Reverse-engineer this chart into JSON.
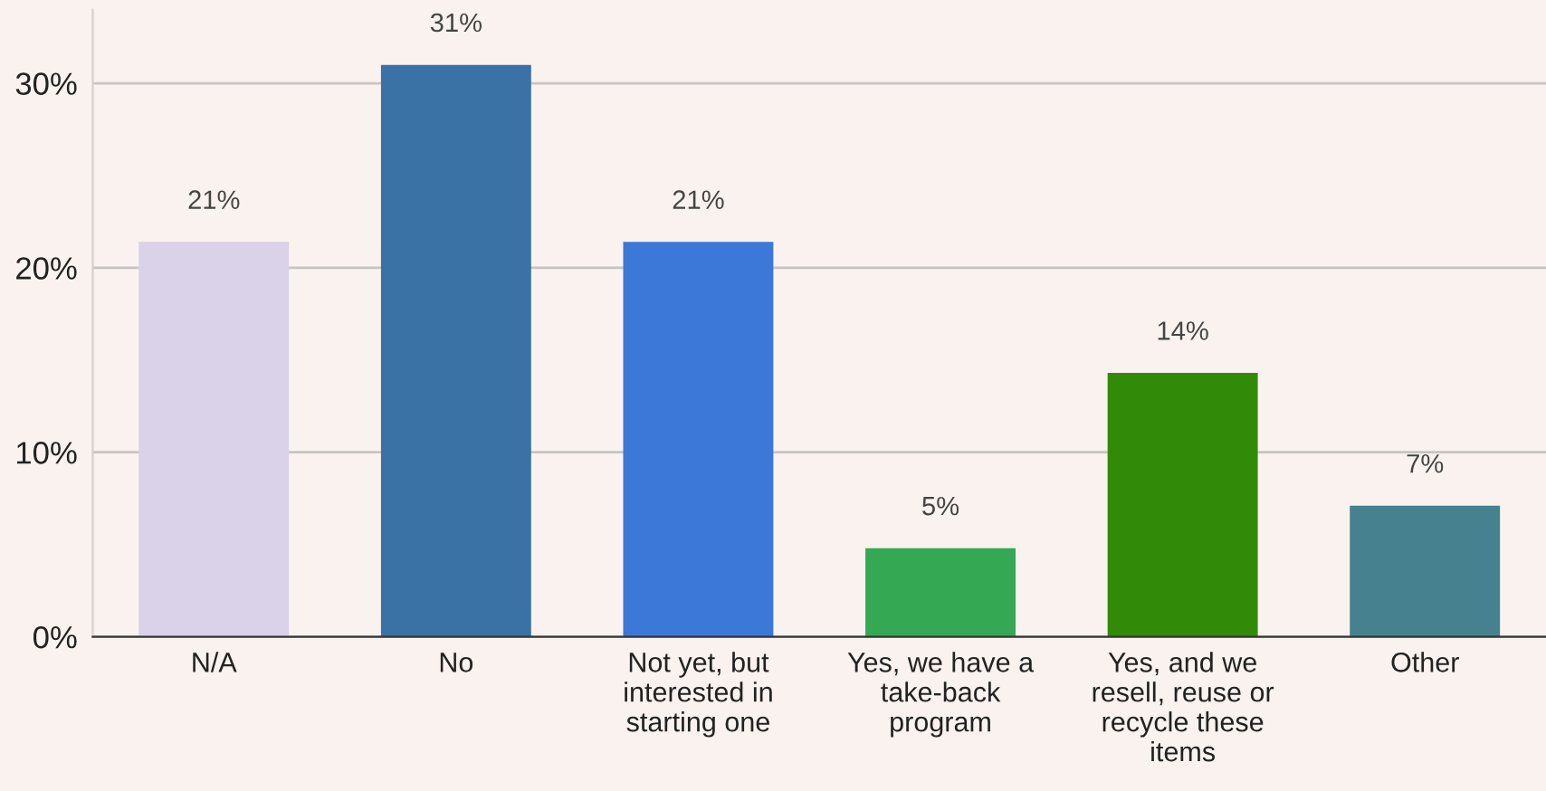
{
  "chart_data": {
    "type": "bar",
    "categories": [
      "N/A",
      "No",
      "Not yet, but\ninterested in\nstarting one",
      "Yes, we have a\ntake-back\nprogram",
      "Yes, and we\nresell, reuse or\nrecycle these\nitems",
      "Other"
    ],
    "values": [
      21.4,
      31.0,
      21.4,
      4.8,
      14.3,
      7.1
    ],
    "colors": [
      "#d9d2e9",
      "#3a72a5",
      "#3c78d8",
      "#34a853",
      "#318b08",
      "#45818e"
    ],
    "value_labels": [
      "21%",
      "31%",
      "21%",
      "5%",
      "14%",
      "7%"
    ],
    "ylim": [
      0,
      34
    ],
    "yticks": [
      {
        "value": 0,
        "label": "0%"
      },
      {
        "value": 10,
        "label": "10%"
      },
      {
        "value": 20,
        "label": "20%"
      },
      {
        "value": 30,
        "label": "30%"
      }
    ],
    "grid": "y",
    "legend": false
  }
}
